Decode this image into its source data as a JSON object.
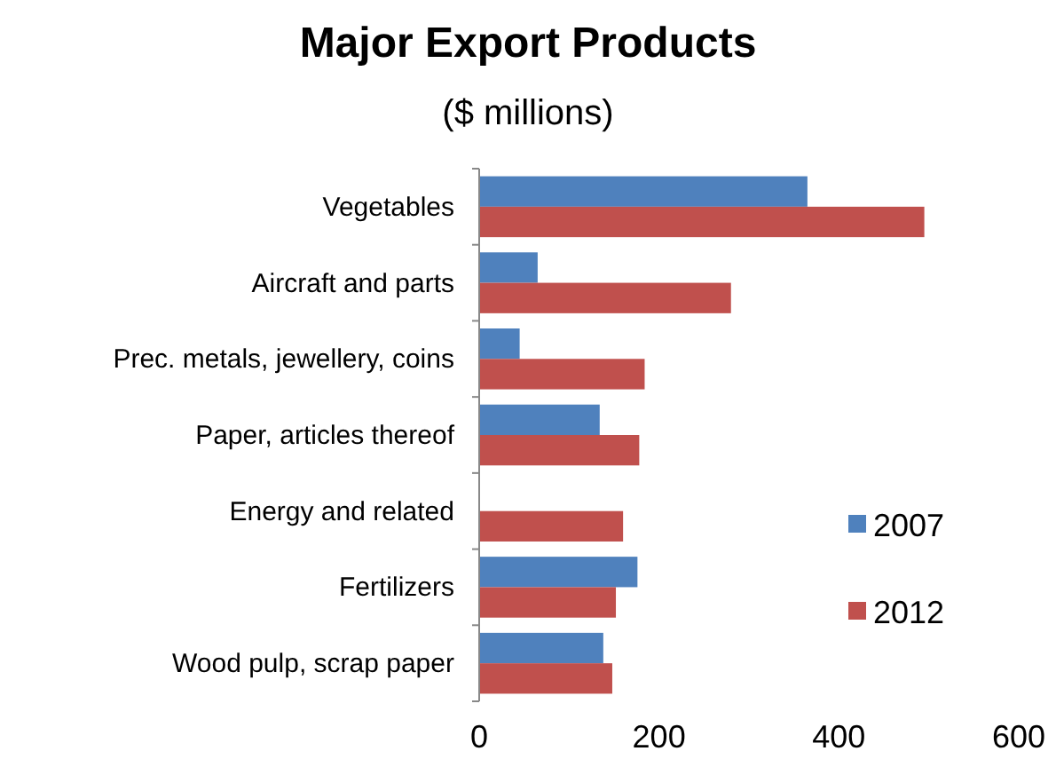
{
  "chart_data": {
    "type": "bar",
    "orientation": "horizontal",
    "title": "Major Export Products",
    "subtitle": "($ millions)",
    "categories": [
      "Vegetables",
      "Aircraft and parts",
      "Prec. metals, jewellery, coins",
      "Paper, articles thereof",
      "Energy and related",
      "Fertilizers",
      "Wood pulp, scrap paper"
    ],
    "series": [
      {
        "name": "2007",
        "color": "#4f81bd",
        "values": [
          365,
          65,
          45,
          134,
          null,
          176,
          138
        ]
      },
      {
        "name": "2012",
        "color": "#c0504d",
        "values": [
          495,
          280,
          184,
          178,
          160,
          152,
          148
        ]
      }
    ],
    "xlim": [
      0,
      600
    ],
    "xticks": [
      0,
      200,
      400,
      600
    ],
    "grid": false,
    "legend": "right"
  }
}
